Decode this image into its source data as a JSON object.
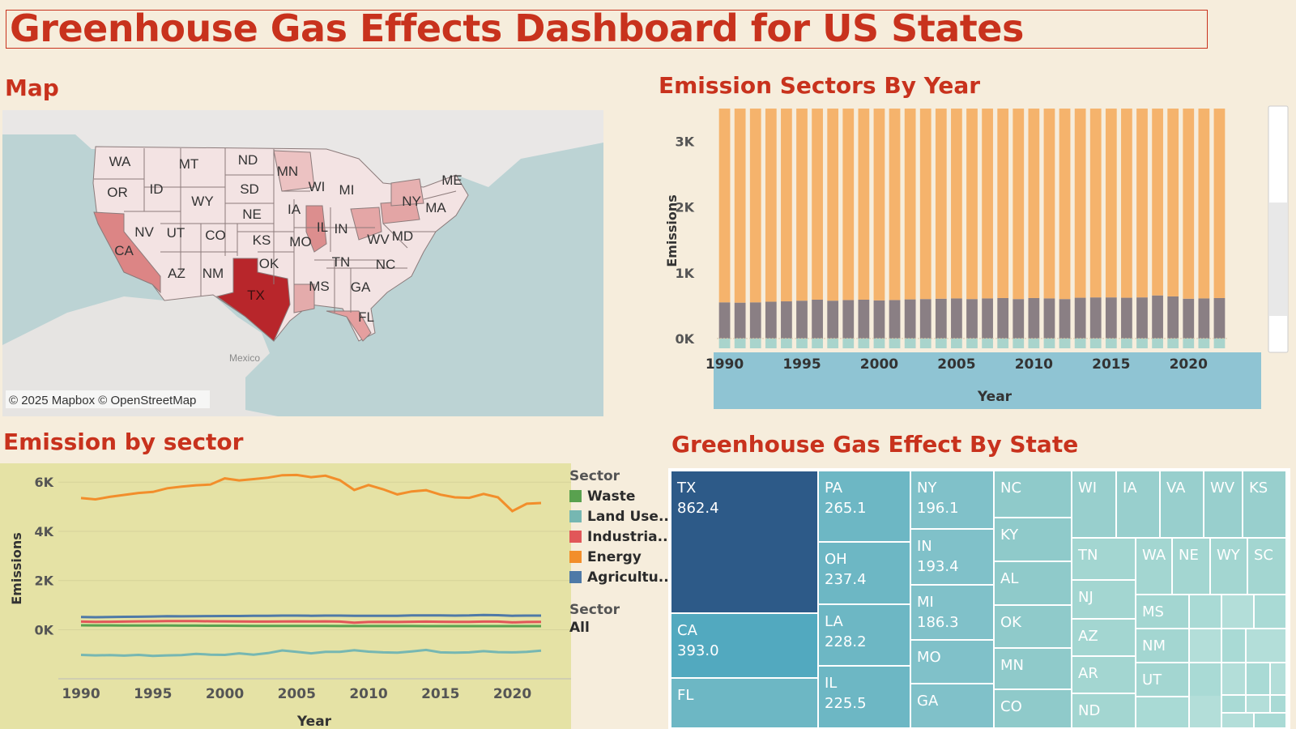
{
  "title": "Greenhouse Gas Effects Dashboard for US States",
  "sections": {
    "map": "Map",
    "bars": "Emission Sectors By Year",
    "line": "Emission by sector",
    "treemap": "Greenhouse Gas Effect By State"
  },
  "map": {
    "attribution": "© 2025 Mapbox © OpenStreetMap",
    "country_label": "Mexico",
    "state_labels": [
      "WA",
      "MT",
      "ND",
      "MN",
      "ME",
      "OR",
      "ID",
      "SD",
      "WI",
      "MI",
      "WY",
      "NE",
      "IA",
      "NY",
      "MA",
      "NV",
      "UT",
      "CO",
      "KS",
      "MO",
      "IL",
      "IN",
      "WV",
      "MD",
      "CA",
      "OK",
      "TN",
      "NC",
      "AZ",
      "NM",
      "TX",
      "MS",
      "GA",
      "FL"
    ]
  },
  "bar_chart": {
    "type": "bar",
    "xlabel": "Year",
    "ylabel": "Emissions",
    "x_ticks": [
      "1990",
      "1995",
      "2000",
      "2005",
      "2010",
      "2015",
      "2020"
    ],
    "y_ticks": [
      "0K",
      "1K",
      "2K",
      "3K"
    ],
    "ylim": [
      -150,
      3550
    ],
    "categories": [
      1990,
      1991,
      1992,
      1993,
      1994,
      1995,
      1996,
      1997,
      1998,
      1999,
      2000,
      2001,
      2002,
      2003,
      2004,
      2005,
      2006,
      2007,
      2008,
      2009,
      2010,
      2011,
      2012,
      2013,
      2014,
      2015,
      2016,
      2017,
      2018,
      2019,
      2020,
      2021,
      2022
    ],
    "series": [
      {
        "values": [
          -150,
          -150,
          -150,
          -150,
          -150,
          -150,
          -150,
          -150,
          -150,
          -150,
          -150,
          -150,
          -150,
          -150,
          -150,
          -150,
          -150,
          -150,
          -150,
          -150,
          -150,
          -150,
          -150,
          -150,
          -150,
          -150,
          -150,
          -150,
          -150,
          -150,
          -150,
          -150,
          -150
        ]
      },
      {
        "values": [
          550,
          545,
          550,
          560,
          565,
          575,
          590,
          575,
          585,
          590,
          580,
          585,
          595,
          600,
          605,
          610,
          600,
          610,
          615,
          600,
          615,
          610,
          600,
          620,
          625,
          625,
          620,
          625,
          655,
          640,
          605,
          610,
          615
        ]
      },
      {
        "values": [
          2950,
          2955,
          2950,
          2940,
          2935,
          2925,
          2910,
          2925,
          2915,
          2910,
          2920,
          2915,
          2905,
          2900,
          2895,
          2890,
          2900,
          2890,
          2885,
          2900,
          2885,
          2890,
          2900,
          2880,
          2875,
          2875,
          2880,
          2875,
          2845,
          2860,
          2895,
          2890,
          2885
        ]
      }
    ],
    "colors": [
      "#a9d4cc",
      "#8a7f84",
      "#f5b36c"
    ]
  },
  "line_chart": {
    "type": "line",
    "xlabel": "Year",
    "ylabel": "Emissions",
    "x_ticks": [
      "1990",
      "1995",
      "2000",
      "2005",
      "2010",
      "2015",
      "2020"
    ],
    "y_ticks": [
      "0K",
      "2K",
      "4K",
      "6K"
    ],
    "ylim": [
      -1400,
      6500
    ],
    "x": [
      1990,
      1991,
      1992,
      1993,
      1994,
      1995,
      1996,
      1997,
      1998,
      1999,
      2000,
      2001,
      2002,
      2003,
      2004,
      2005,
      2006,
      2007,
      2008,
      2009,
      2010,
      2011,
      2012,
      2013,
      2014,
      2015,
      2016,
      2017,
      2018,
      2019,
      2020,
      2021,
      2022
    ],
    "series": [
      {
        "name": "Energy",
        "color": "#f28e2b",
        "values": [
          5350,
          5300,
          5400,
          5480,
          5560,
          5600,
          5750,
          5820,
          5870,
          5900,
          6150,
          6070,
          6120,
          6180,
          6280,
          6290,
          6200,
          6260,
          6080,
          5680,
          5880,
          5710,
          5500,
          5620,
          5670,
          5490,
          5380,
          5360,
          5520,
          5380,
          4820,
          5120,
          5150
        ]
      },
      {
        "name": "Agricultu..",
        "color": "#4e79a7",
        "values": [
          520,
          510,
          515,
          525,
          530,
          540,
          550,
          545,
          550,
          555,
          560,
          560,
          565,
          570,
          575,
          575,
          570,
          575,
          575,
          565,
          570,
          570,
          565,
          580,
          580,
          580,
          575,
          580,
          600,
          590,
          570,
          575,
          575
        ]
      },
      {
        "name": "Industria..",
        "color": "#e15759",
        "values": [
          330,
          320,
          325,
          330,
          340,
          345,
          350,
          355,
          350,
          345,
          340,
          335,
          330,
          330,
          335,
          340,
          335,
          340,
          330,
          290,
          315,
          320,
          315,
          325,
          330,
          325,
          320,
          320,
          330,
          330,
          300,
          315,
          320
        ]
      },
      {
        "name": "Waste",
        "color": "#59a14f",
        "values": [
          180,
          178,
          176,
          175,
          174,
          172,
          170,
          168,
          166,
          164,
          162,
          160,
          158,
          157,
          156,
          155,
          154,
          153,
          152,
          151,
          150,
          150,
          149,
          149,
          148,
          148,
          147,
          147,
          147,
          146,
          146,
          146,
          146
        ]
      },
      {
        "name": "Land Use..",
        "color": "#76b7b2",
        "values": [
          -1020,
          -1040,
          -1030,
          -1050,
          -1020,
          -1060,
          -1040,
          -1030,
          -980,
          -1010,
          -1020,
          -960,
          -1010,
          -950,
          -840,
          -900,
          -960,
          -900,
          -900,
          -830,
          -890,
          -920,
          -930,
          -880,
          -820,
          -920,
          -930,
          -920,
          -870,
          -910,
          -920,
          -900,
          -850
        ]
      }
    ]
  },
  "legend": {
    "title": "Sector",
    "items": [
      {
        "name": "Waste",
        "color": "#59a14f"
      },
      {
        "name": "Land Use..",
        "color": "#76b7b2"
      },
      {
        "name": "Industria..",
        "color": "#e15759"
      },
      {
        "name": "Energy",
        "color": "#f28e2b"
      },
      {
        "name": "Agricultu..",
        "color": "#4e79a7"
      }
    ],
    "filter_title": "Sector",
    "filter_value": "All"
  },
  "treemap": {
    "states": [
      {
        "state": "TX",
        "value": "862.4"
      },
      {
        "state": "CA",
        "value": "393.0"
      },
      {
        "state": "FL"
      },
      {
        "state": "PA",
        "value": "265.1"
      },
      {
        "state": "OH",
        "value": "237.4"
      },
      {
        "state": "LA",
        "value": "228.2"
      },
      {
        "state": "IL",
        "value": "225.5"
      },
      {
        "state": "NY",
        "value": "196.1"
      },
      {
        "state": "IN",
        "value": "193.4"
      },
      {
        "state": "MI",
        "value": "186.3"
      },
      {
        "state": "MO"
      },
      {
        "state": "GA"
      },
      {
        "state": "NC"
      },
      {
        "state": "KY"
      },
      {
        "state": "AL"
      },
      {
        "state": "OK"
      },
      {
        "state": "MN"
      },
      {
        "state": "CO"
      },
      {
        "state": "WI"
      },
      {
        "state": "IA"
      },
      {
        "state": "VA"
      },
      {
        "state": "WV"
      },
      {
        "state": "KS"
      },
      {
        "state": "TN"
      },
      {
        "state": "WA"
      },
      {
        "state": "NE"
      },
      {
        "state": "WY"
      },
      {
        "state": "SC"
      },
      {
        "state": "NJ"
      },
      {
        "state": "AZ"
      },
      {
        "state": "AR"
      },
      {
        "state": "ND"
      },
      {
        "state": "MS"
      },
      {
        "state": "NM"
      },
      {
        "state": "UT"
      }
    ]
  }
}
